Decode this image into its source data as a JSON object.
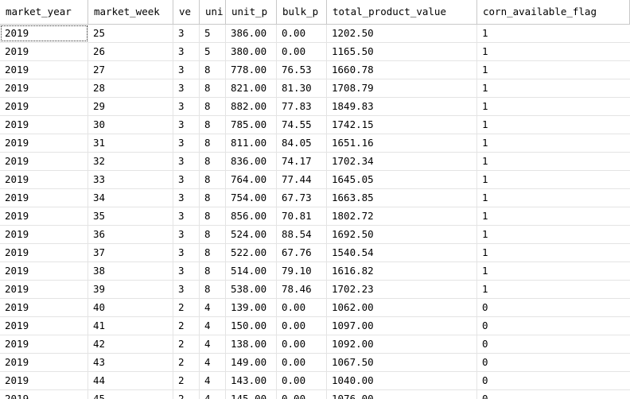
{
  "columns": [
    "market_year",
    "market_week",
    "vendor_id",
    "unit_product_count",
    "unit_price",
    "bulk_product_weight",
    "total_product_value",
    "corn_available_flag"
  ],
  "columns_visible": [
    "market_year",
    "market_week",
    "ve",
    "uni",
    "unit_p",
    "bulk_p",
    "total_product_value",
    "corn_available_flag"
  ],
  "rows": [
    [
      "2019",
      "25",
      "3",
      "5",
      "386.00",
      "0.00",
      "1202.50",
      "1"
    ],
    [
      "2019",
      "26",
      "3",
      "5",
      "380.00",
      "0.00",
      "1165.50",
      "1"
    ],
    [
      "2019",
      "27",
      "3",
      "8",
      "778.00",
      "76.53",
      "1660.78",
      "1"
    ],
    [
      "2019",
      "28",
      "3",
      "8",
      "821.00",
      "81.30",
      "1708.79",
      "1"
    ],
    [
      "2019",
      "29",
      "3",
      "8",
      "882.00",
      "77.83",
      "1849.83",
      "1"
    ],
    [
      "2019",
      "30",
      "3",
      "8",
      "785.00",
      "74.55",
      "1742.15",
      "1"
    ],
    [
      "2019",
      "31",
      "3",
      "8",
      "811.00",
      "84.05",
      "1651.16",
      "1"
    ],
    [
      "2019",
      "32",
      "3",
      "8",
      "836.00",
      "74.17",
      "1702.34",
      "1"
    ],
    [
      "2019",
      "33",
      "3",
      "8",
      "764.00",
      "77.44",
      "1645.05",
      "1"
    ],
    [
      "2019",
      "34",
      "3",
      "8",
      "754.00",
      "67.73",
      "1663.85",
      "1"
    ],
    [
      "2019",
      "35",
      "3",
      "8",
      "856.00",
      "70.81",
      "1802.72",
      "1"
    ],
    [
      "2019",
      "36",
      "3",
      "8",
      "524.00",
      "88.54",
      "1692.50",
      "1"
    ],
    [
      "2019",
      "37",
      "3",
      "8",
      "522.00",
      "67.76",
      "1540.54",
      "1"
    ],
    [
      "2019",
      "38",
      "3",
      "8",
      "514.00",
      "79.10",
      "1616.82",
      "1"
    ],
    [
      "2019",
      "39",
      "3",
      "8",
      "538.00",
      "78.46",
      "1702.23",
      "1"
    ],
    [
      "2019",
      "40",
      "2",
      "4",
      "139.00",
      "0.00",
      "1062.00",
      "0"
    ],
    [
      "2019",
      "41",
      "2",
      "4",
      "150.00",
      "0.00",
      "1097.00",
      "0"
    ],
    [
      "2019",
      "42",
      "2",
      "4",
      "138.00",
      "0.00",
      "1092.00",
      "0"
    ],
    [
      "2019",
      "43",
      "2",
      "4",
      "149.00",
      "0.00",
      "1067.50",
      "0"
    ],
    [
      "2019",
      "44",
      "2",
      "4",
      "143.00",
      "0.00",
      "1040.00",
      "0"
    ],
    [
      "2019",
      "45",
      "2",
      "4",
      "145.00",
      "0.00",
      "1076.00",
      "0"
    ]
  ]
}
